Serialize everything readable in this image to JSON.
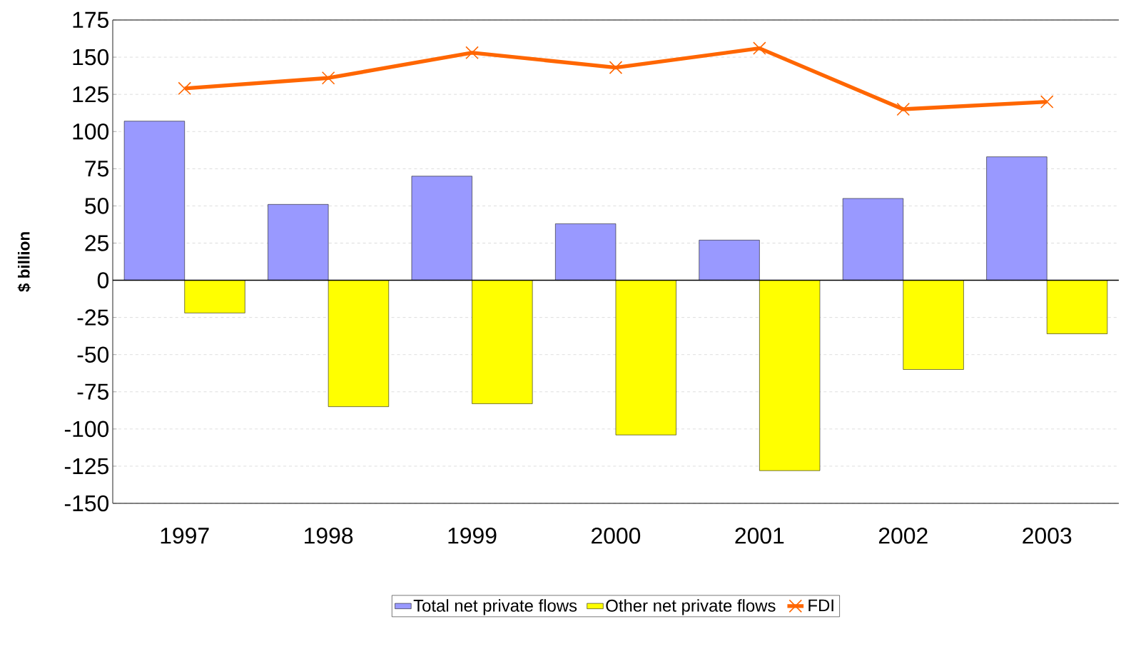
{
  "chart_data": {
    "type": "bar",
    "ylabel": "$ billion",
    "categories": [
      "1997",
      "1998",
      "1999",
      "2000",
      "2001",
      "2002",
      "2003"
    ],
    "series": [
      {
        "name": "Total net private flows",
        "color": "#9999ff",
        "values": [
          107,
          51,
          70,
          38,
          27,
          55,
          83
        ]
      },
      {
        "name": "Other net private flows",
        "color": "#ffff00",
        "values": [
          -22,
          -85,
          -83,
          -104,
          -128,
          -60,
          -36
        ]
      },
      {
        "name": "FDI",
        "type": "line",
        "color": "#ff6600",
        "marker": "cross",
        "values": [
          129,
          136,
          153,
          143,
          156,
          115,
          120
        ]
      }
    ],
    "ylim": [
      -150,
      175
    ],
    "yticks": [
      -150,
      -125,
      -100,
      -75,
      -50,
      -25,
      0,
      25,
      50,
      75,
      100,
      125,
      150,
      175
    ],
    "grid": "y",
    "legend": "bottom"
  }
}
